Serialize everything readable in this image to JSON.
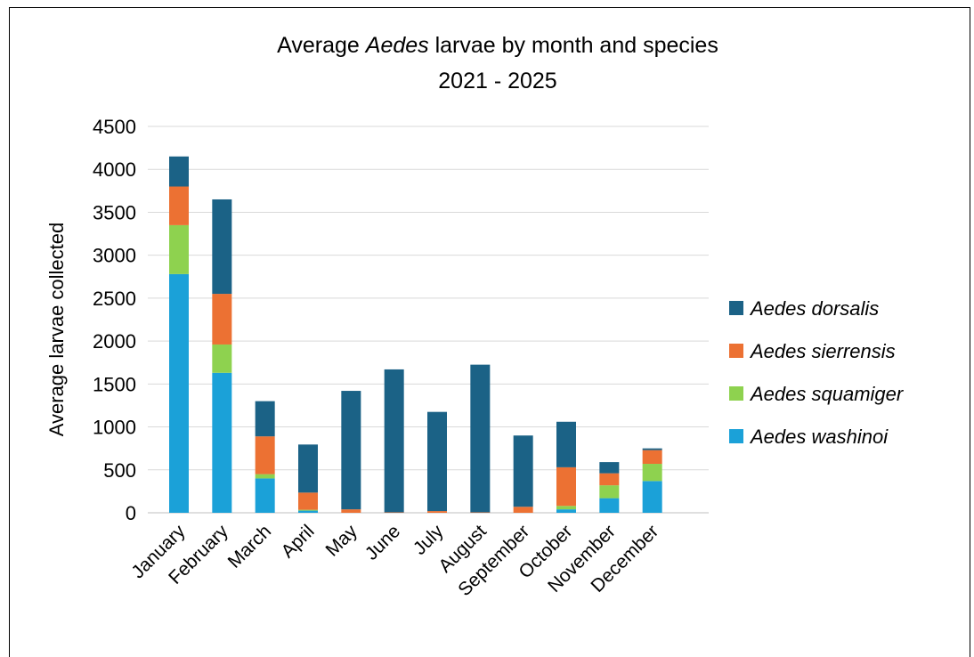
{
  "chart_data": {
    "type": "bar",
    "stacked": true,
    "title_parts": [
      "Average ",
      "Aedes",
      " larvae by month and species"
    ],
    "subtitle": "2021 - 2025",
    "ylabel": "Average larvae collected",
    "xlabel": "",
    "ylim": [
      0,
      4500
    ],
    "yticks": [
      0,
      500,
      1000,
      1500,
      2000,
      2500,
      3000,
      3500,
      4000,
      4500
    ],
    "grid": true,
    "legend_position": "right",
    "categories": [
      "January",
      "February",
      "March",
      "April",
      "May",
      "June",
      "July",
      "August",
      "September",
      "October",
      "November",
      "December"
    ],
    "series": [
      {
        "name": "Aedes washinoi",
        "color": "#1ba1d8",
        "values": [
          2780,
          1630,
          400,
          25,
          0,
          0,
          0,
          0,
          0,
          40,
          170,
          370
        ]
      },
      {
        "name": "Aedes squamiger",
        "color": "#8ed24f",
        "values": [
          570,
          330,
          50,
          10,
          0,
          0,
          0,
          0,
          0,
          40,
          150,
          200
        ]
      },
      {
        "name": "Aedes sierrensis",
        "color": "#ec7133",
        "values": [
          450,
          590,
          440,
          200,
          40,
          5,
          20,
          5,
          70,
          450,
          140,
          160
        ]
      },
      {
        "name": "Aedes dorsalis",
        "color": "#1b6286",
        "values": [
          350,
          1100,
          410,
          560,
          1380,
          1665,
          1155,
          1720,
          830,
          530,
          130,
          20
        ]
      }
    ],
    "legend_order": [
      "Aedes dorsalis",
      "Aedes sierrensis",
      "Aedes squamiger",
      "Aedes washinoi"
    ]
  }
}
